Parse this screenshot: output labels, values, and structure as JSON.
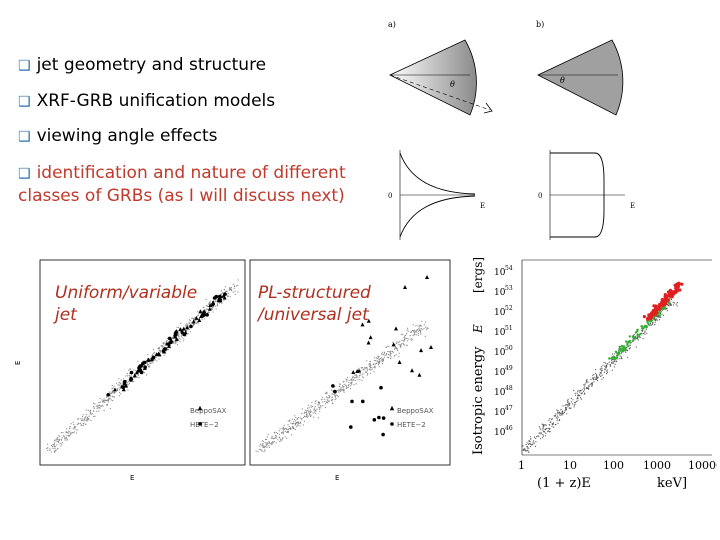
{
  "bullets": [
    {
      "marker": "q",
      "text": "jet geometry and structure"
    },
    {
      "marker": "q",
      "text": "XRF-GRB unification models"
    },
    {
      "marker": "q",
      "text": "viewing angle effects"
    },
    {
      "marker": "q",
      "text": "identification and nature of different classes of GRBs (as I will discuss next)"
    }
  ],
  "diagrams": {
    "a_label": "a)",
    "b_label": "b)",
    "theta_a": "θ",
    "theta_b": "θ",
    "zero_a": "0",
    "zero_b": "0",
    "eiso_a": "E",
    "eiso_b": "E"
  },
  "left_plot": {
    "label_line1": "Uniform/variable",
    "label_line2": "jet",
    "ylabel": "E",
    "xlabel": "E",
    "legend1": "BeppoSAX",
    "legend2": "HETE−2"
  },
  "middle_plot": {
    "label_line1": "PL-structured",
    "label_line2": "/universal jet",
    "xlabel": "E",
    "legend1": "BeppoSAX",
    "legend2": "HETE−2"
  },
  "right_plot": {
    "ylabel": "Isotropic energy",
    "ylabel_sym": "E",
    "yticks": [
      "10",
      "10",
      "10",
      "10",
      "10",
      "10",
      "10",
      "10",
      "10"
    ],
    "yexp": [
      "54",
      "53",
      "52",
      "51",
      "50",
      "49",
      "48",
      "47",
      "46"
    ],
    "xticks": [
      "1",
      "10",
      "100",
      "1000",
      "10000"
    ],
    "xlabel": "(1 + z)E",
    "xunit": "keV]"
  },
  "colors": {
    "bullet_marker": "#2f6fb0",
    "red_text": "#c0392b",
    "scatter_red": "#e02020",
    "scatter_green": "#30b030"
  }
}
